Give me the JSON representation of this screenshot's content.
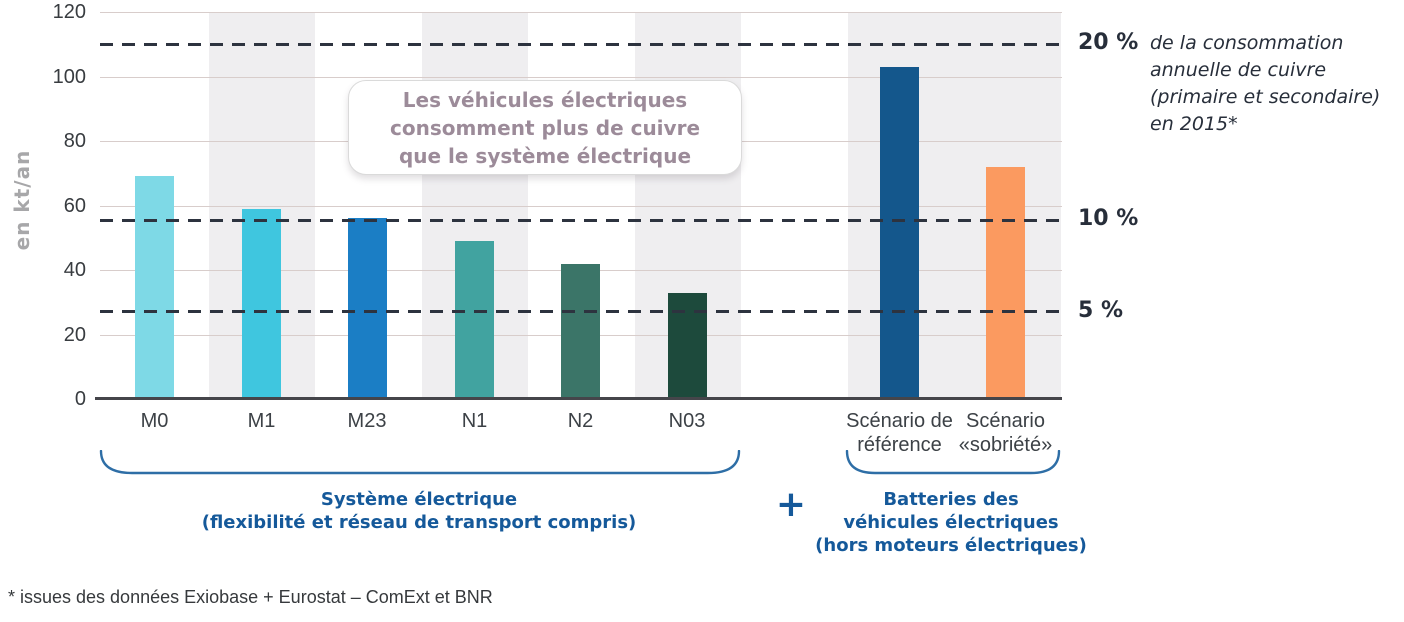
{
  "chart_data": {
    "type": "bar",
    "ylabel": "en kt/an",
    "ylim": [
      0,
      120
    ],
    "yticks": [
      0,
      20,
      40,
      60,
      80,
      100,
      120
    ],
    "grid": "horizontal",
    "categories": [
      "M0",
      "M1",
      "M23",
      "N1",
      "N2",
      "N03",
      "Scénario de\nréférence",
      "Scénario\n«sobriété»"
    ],
    "values": [
      69,
      59,
      56,
      49,
      42,
      33,
      103,
      72
    ],
    "bar_colors": [
      "#7ed9e6",
      "#3fc6df",
      "#1b7ec5",
      "#41a3a0",
      "#3b7568",
      "#1d4a3c",
      "#14578c",
      "#fb9a60"
    ],
    "reference_lines": [
      {
        "label": "20 %",
        "kt": 110
      },
      {
        "label": "10 %",
        "kt": 55.5
      },
      {
        "label": "5 %",
        "kt": 27
      }
    ],
    "reference_note_lines": [
      "de la consommation",
      "annuelle de cuivre",
      "(primaire et secondaire)",
      "en 2015*"
    ],
    "annotation_lines": [
      "Les véhicules électriques",
      "consomment plus de cuivre",
      "que le système électrique"
    ],
    "groups": [
      {
        "label_lines": [
          "Système électrique",
          "(flexibilité et réseau de transport compris)"
        ],
        "categories": [
          "M0",
          "M1",
          "M23",
          "N1",
          "N2",
          "N03"
        ]
      },
      {
        "label_lines": [
          "Batteries des",
          "véhicules électriques",
          "(hors moteurs électriques)"
        ],
        "categories": [
          "Scénario de référence",
          "Scénario «sobriété»"
        ]
      }
    ],
    "group_join_symbol": "+",
    "footnote": "* issues des données Exiobase + Eurostat – ComExt et BNR"
  }
}
